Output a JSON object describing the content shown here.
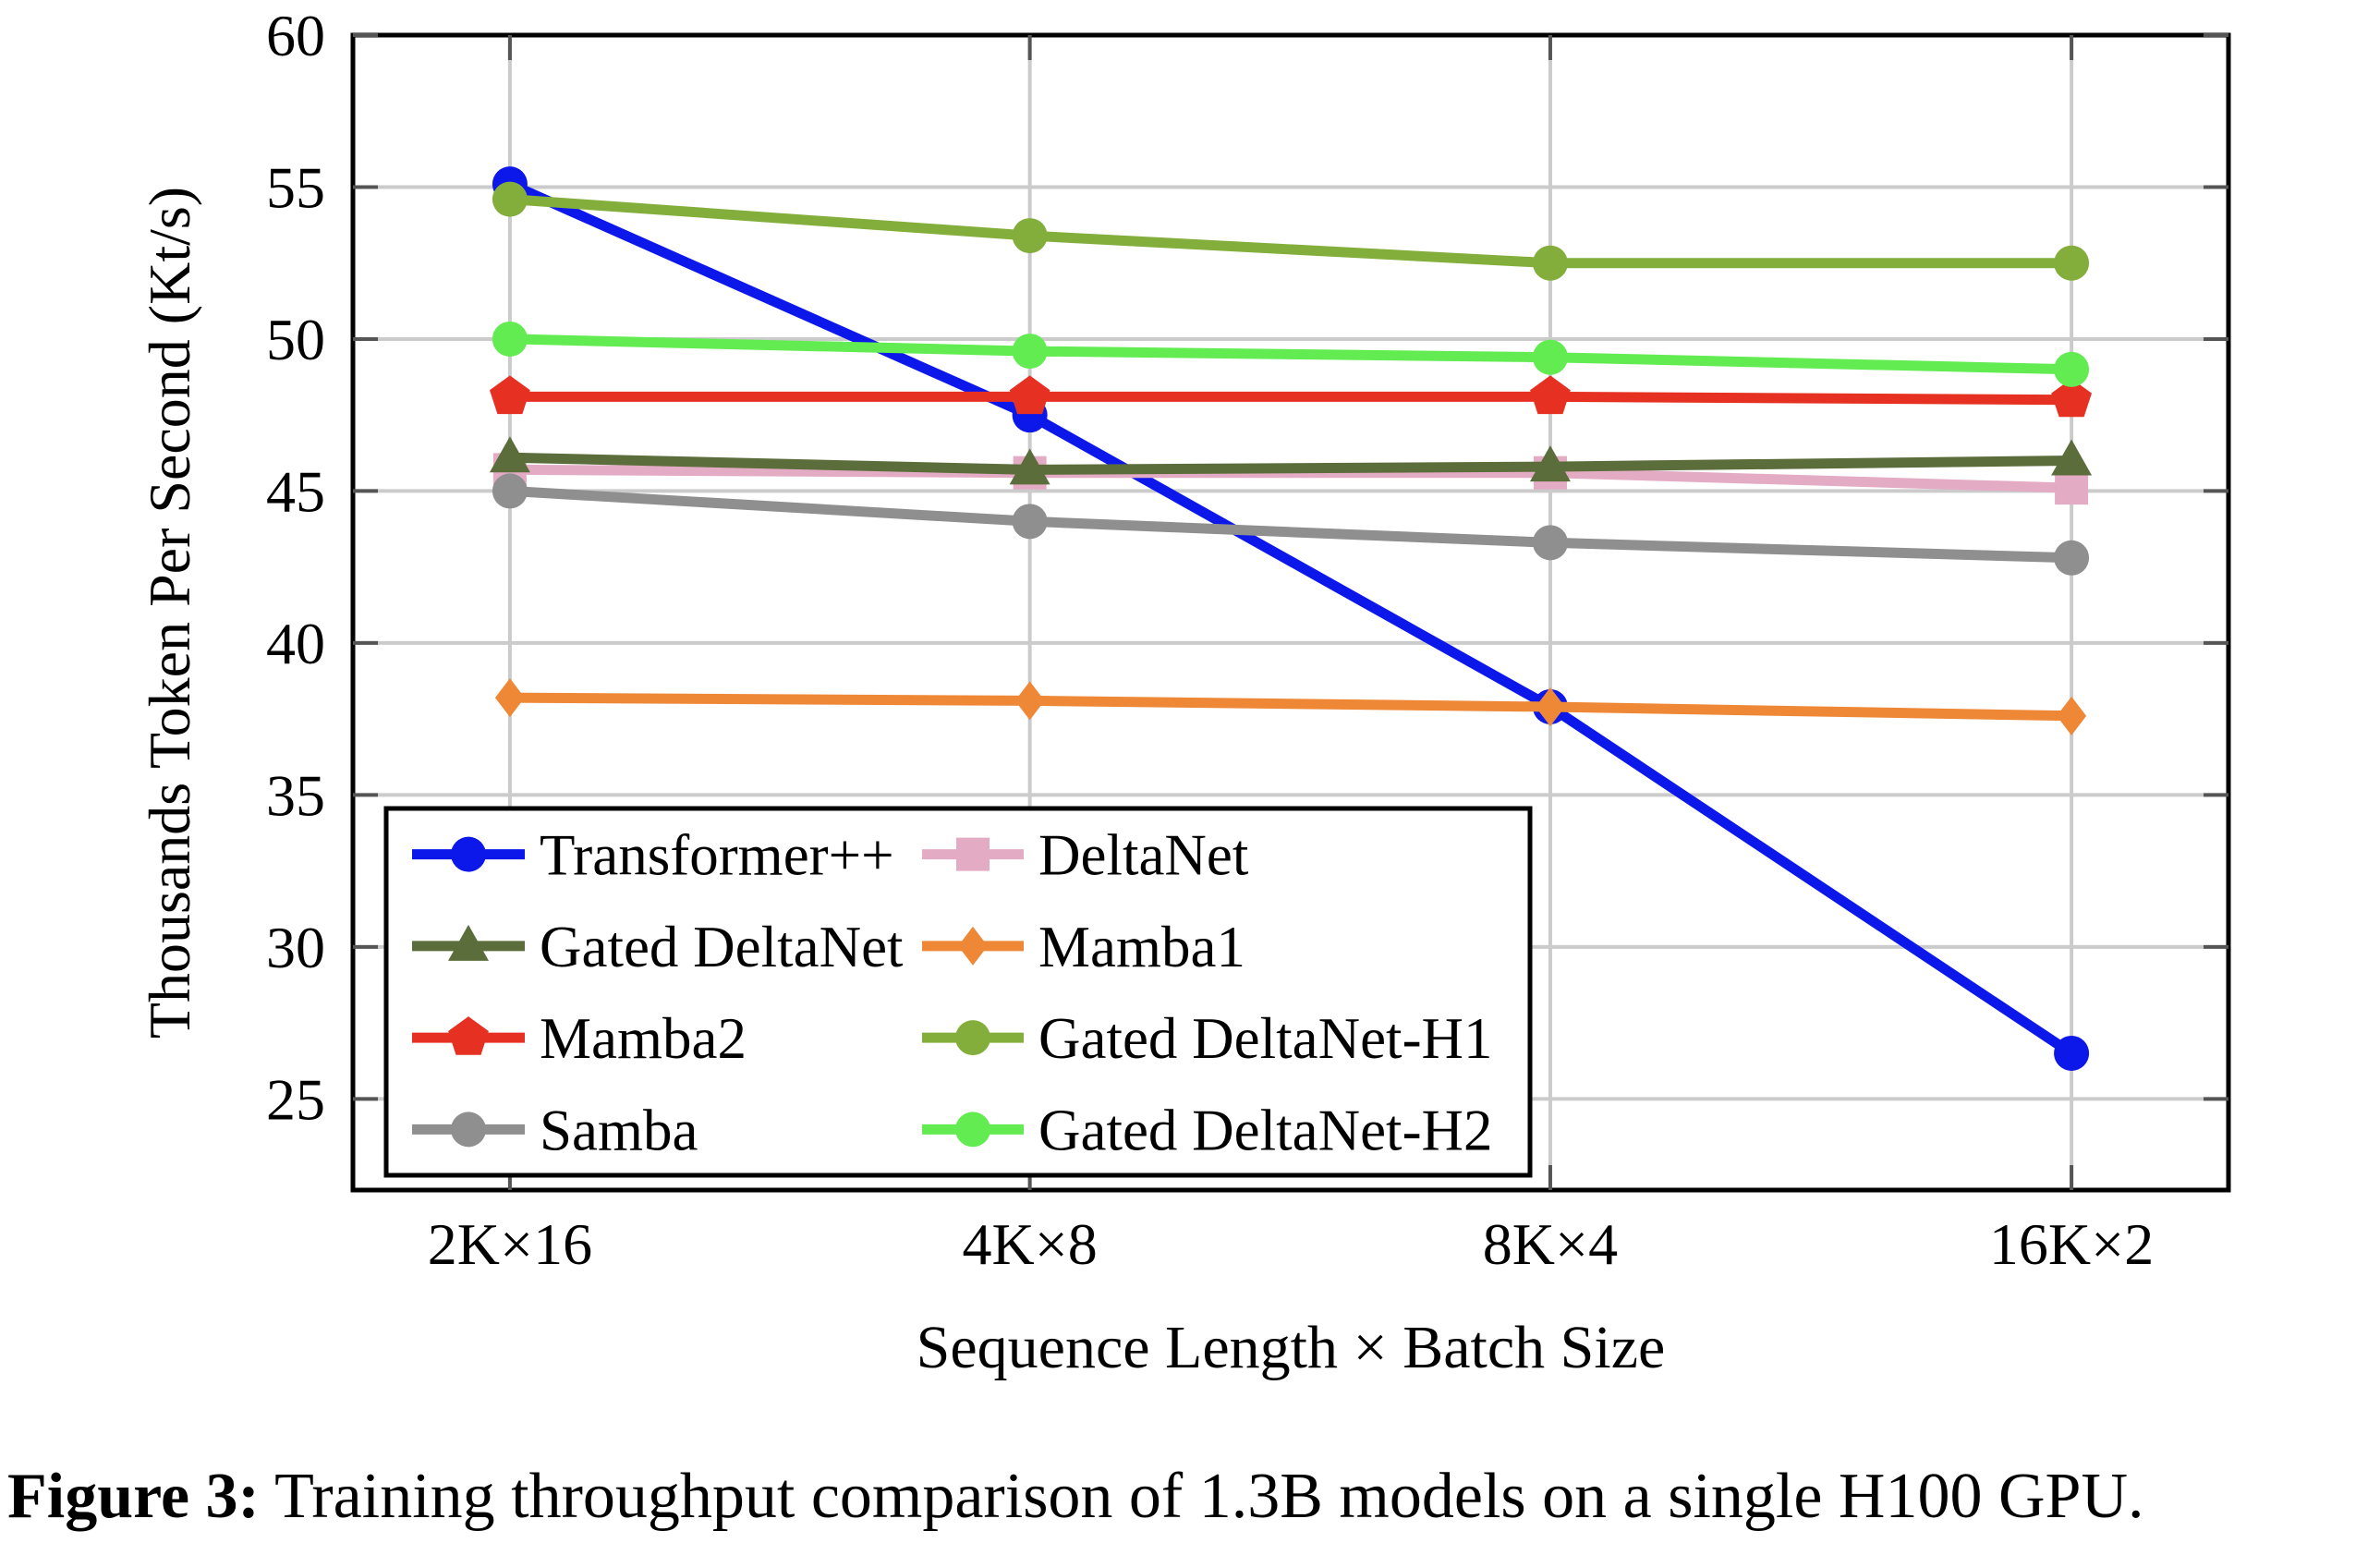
{
  "figure": {
    "caption_label": "Figure 3:",
    "caption_text": " Training throughput comparison of 1.3B models on a single H100 GPU."
  },
  "chart_data": {
    "type": "line",
    "title": "",
    "xlabel": "Sequence Length × Batch Size",
    "ylabel": "Thousands Token Per Second (Kt/s)",
    "x_categories": [
      "2K×16",
      "4K×8",
      "8K×4",
      "16K×2"
    ],
    "yticks": [
      25,
      30,
      35,
      40,
      45,
      50,
      55,
      60
    ],
    "ylim": [
      22,
      60
    ],
    "grid": true,
    "legend_position": "lower-left",
    "legend_columns": 2,
    "series": [
      {
        "name": "Transformer++",
        "color": "#0c17ea",
        "marker": "circle",
        "values": [
          55.1,
          47.5,
          37.9,
          26.5
        ]
      },
      {
        "name": "DeltaNet",
        "color": "#e3abc4",
        "marker": "square",
        "values": [
          45.7,
          45.6,
          45.6,
          45.1
        ]
      },
      {
        "name": "Gated DeltaNet",
        "color": "#5b6d3a",
        "marker": "triangle",
        "values": [
          46.1,
          45.7,
          45.8,
          46.0
        ]
      },
      {
        "name": "Mamba1",
        "color": "#ee8836",
        "marker": "diamond",
        "values": [
          38.2,
          38.1,
          37.9,
          37.6
        ]
      },
      {
        "name": "Mamba2",
        "color": "#e63122",
        "marker": "pentagon",
        "values": [
          48.1,
          48.1,
          48.1,
          48.0
        ]
      },
      {
        "name": "Gated DeltaNet-H1",
        "color": "#84ae3b",
        "marker": "circle",
        "values": [
          54.6,
          53.4,
          52.5,
          52.5
        ]
      },
      {
        "name": "Samba",
        "color": "#8f8f8f",
        "marker": "circle",
        "values": [
          45.0,
          44.0,
          43.3,
          42.8
        ]
      },
      {
        "name": "Gated DeltaNet-H2",
        "color": "#62ec51",
        "marker": "circle",
        "values": [
          50.0,
          49.6,
          49.4,
          49.0
        ]
      }
    ]
  }
}
